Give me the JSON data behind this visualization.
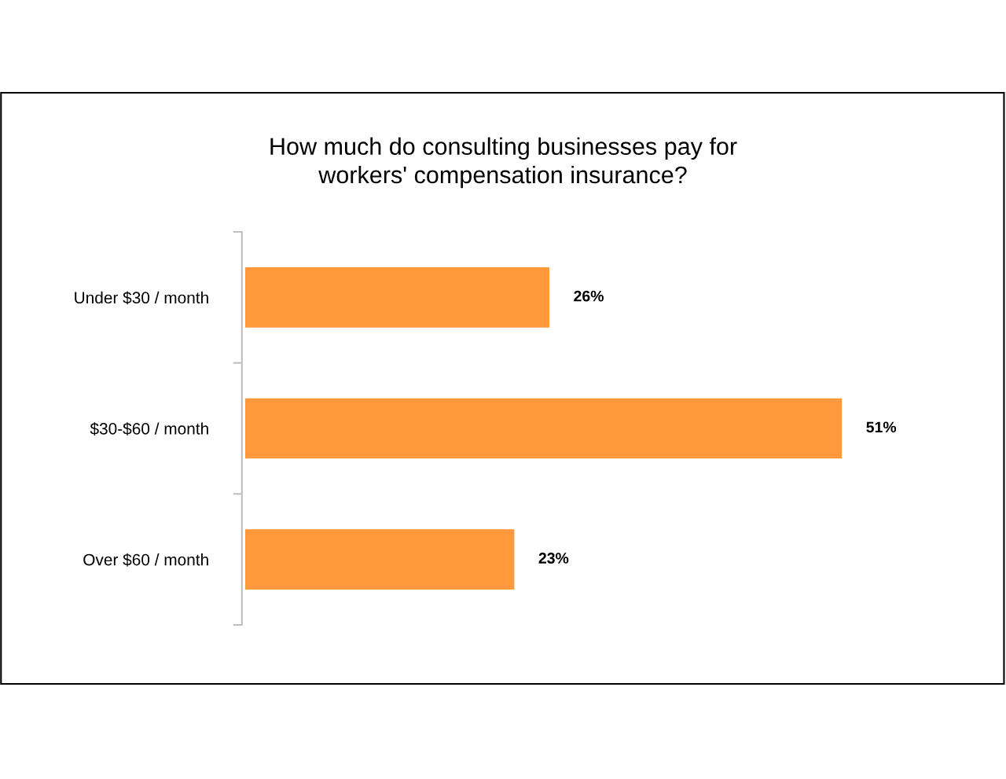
{
  "chart_data": {
    "type": "bar",
    "orientation": "horizontal",
    "title": "How much do consulting businesses pay for\nworkers' compensation insurance?",
    "categories": [
      "Under $30 / month",
      "$30-$60 / month",
      "Over $60 / month"
    ],
    "values": [
      26,
      51,
      23
    ],
    "value_labels": [
      "26%",
      "51%",
      "23%"
    ],
    "color": "#ff993c",
    "grid": false,
    "legend": false
  }
}
